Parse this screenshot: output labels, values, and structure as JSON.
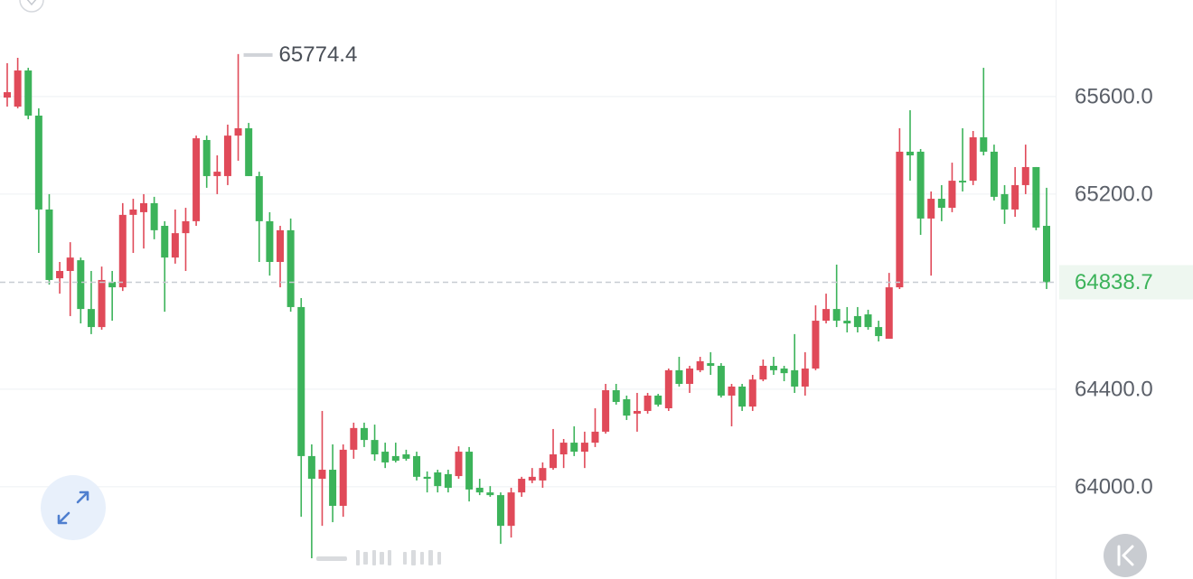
{
  "chart_data": {
    "type": "candlestick",
    "up_color": "#e04a59",
    "down_color": "#3cb35a",
    "grid": true,
    "ylim": [
      63622,
      65996
    ],
    "yticks": [
      {
        "value": 65600,
        "label": "65600.0"
      },
      {
        "value": 65200,
        "label": "65200.0"
      },
      {
        "value": 64400,
        "label": "64400.0"
      },
      {
        "value": 64000,
        "label": "64000.0"
      }
    ],
    "open": [
      65596,
      65559,
      65707,
      65522,
      65137,
      64855,
      64885,
      64929,
      64729,
      64655,
      64840,
      64818,
      65115,
      65126,
      65163,
      65070,
      64940,
      65040,
      65089,
      65422,
      65274,
      65274,
      65440,
      65470,
      65274,
      65089,
      64922,
      65052,
      64737,
      64126,
      64033,
      64070,
      63922,
      64152,
      64241,
      64192,
      64144,
      64126,
      64133,
      64126,
      64041,
      64059,
      64052,
      64044,
      64144,
      63996,
      63977,
      63966,
      63840,
      63977,
      64026,
      64026,
      64077,
      64133,
      64181,
      64144,
      64181,
      64226,
      64396,
      64359,
      64300,
      64311,
      64374,
      64322,
      64478,
      64422,
      64478,
      64507,
      64496,
      64374,
      64411,
      64329,
      64440,
      64496,
      64485,
      64478,
      64411,
      64485,
      64681,
      64729,
      64681,
      64700,
      64707,
      64655,
      64607,
      64818,
      65374,
      65374,
      65100,
      65181,
      65144,
      65255,
      65255,
      65433,
      65374,
      65200,
      65137,
      65237,
      65311,
      65070
    ],
    "high": [
      65737,
      65759,
      65718,
      65552,
      65200,
      64922,
      65003,
      64940,
      64885,
      64903,
      64885,
      65163,
      65181,
      65200,
      65189,
      65089,
      65137,
      65144,
      65440,
      65440,
      65359,
      65485,
      65774.4,
      65492,
      65292,
      65126,
      65070,
      65100,
      64774,
      64174,
      64311,
      64174,
      64174,
      64263,
      64263,
      64255,
      64181,
      64181,
      64152,
      64144,
      64063,
      64070,
      64070,
      64166,
      64163,
      64033,
      64003,
      63977,
      63996,
      64041,
      64077,
      64100,
      64237,
      64196,
      64248,
      64226,
      64322,
      64422,
      64422,
      64374,
      64385,
      64385,
      64381,
      64485,
      64533,
      64496,
      64533,
      64552,
      64507,
      64422,
      64422,
      64459,
      64522,
      64533,
      64496,
      64626,
      64552,
      64744,
      64792,
      64911,
      64737,
      64737,
      64726,
      64681,
      64877,
      65470,
      65544,
      65385,
      65211,
      65237,
      65329,
      65470,
      65459,
      65718,
      65403,
      65237,
      65311,
      65403,
      65311,
      65226
    ],
    "low": [
      65559,
      65552,
      65507,
      64959,
      64829,
      64792,
      64700,
      64670,
      64626,
      64644,
      64681,
      64803,
      64959,
      64977,
      65015,
      64718,
      64915,
      64885,
      65070,
      65226,
      65200,
      65237,
      65337,
      65274,
      64922,
      64866,
      64818,
      64718,
      63877,
      63707,
      63840,
      63855,
      63877,
      64115,
      64163,
      64107,
      64077,
      64100,
      64107,
      64026,
      63977,
      63977,
      63977,
      64033,
      63940,
      63966,
      63959,
      63766,
      63792,
      63959,
      64015,
      63996,
      64070,
      64077,
      64126,
      64077,
      64163,
      64218,
      64337,
      64274,
      64226,
      64300,
      64329,
      64311,
      64411,
      64385,
      64470,
      64459,
      64366,
      64248,
      64311,
      64311,
      64433,
      64459,
      64433,
      64385,
      64374,
      64478,
      64670,
      64655,
      64633,
      64633,
      64644,
      64596,
      64607,
      64811,
      65255,
      65033,
      64866,
      65089,
      65126,
      65211,
      65237,
      65359,
      65174,
      65078,
      65107,
      65200,
      65052,
      64811
    ],
    "close": [
      65618,
      65707,
      65522,
      65137,
      64848,
      64885,
      64940,
      64729,
      64655,
      64848,
      64818,
      65115,
      65137,
      65163,
      65052,
      64940,
      65040,
      65089,
      65429,
      65274,
      65292,
      65440,
      65470,
      65274,
      65089,
      64922,
      65052,
      64737,
      64126,
      64033,
      64070,
      63922,
      64152,
      64241,
      64192,
      64133,
      64100,
      64107,
      64115,
      64041,
      64033,
      64003,
      63996,
      64144,
      63989,
      63977,
      63966,
      63840,
      63977,
      64033,
      64041,
      64077,
      64133,
      64181,
      64144,
      64181,
      64226,
      64396,
      64348,
      64292,
      64311,
      64374,
      64337,
      64478,
      64422,
      64485,
      64515,
      64496,
      64374,
      64411,
      64329,
      64440,
      64496,
      64478,
      64466,
      64411,
      64485,
      64681,
      64729,
      64681,
      64670,
      64655,
      64655,
      64618,
      64818,
      65374,
      65359,
      65100,
      65181,
      65144,
      65255,
      65248,
      65433,
      65374,
      65189,
      65137,
      65237,
      65311,
      65063,
      64838.7
    ]
  }
}
